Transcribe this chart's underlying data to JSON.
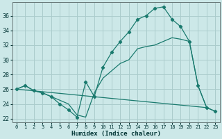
{
  "xlabel": "Humidex (Indice chaleur)",
  "bg_color": "#cce8e8",
  "grid_color": "#aacccc",
  "line_color": "#1a7a6e",
  "xlim": [
    -0.5,
    23.5
  ],
  "ylim": [
    21.5,
    37.8
  ],
  "xticks": [
    0,
    1,
    2,
    3,
    4,
    5,
    6,
    7,
    8,
    9,
    10,
    11,
    12,
    13,
    14,
    15,
    16,
    17,
    18,
    19,
    20,
    21,
    22,
    23
  ],
  "yticks": [
    22,
    24,
    26,
    28,
    30,
    32,
    34,
    36
  ],
  "curve1_x": [
    0,
    1,
    2,
    3,
    4,
    5,
    6,
    7,
    8,
    9,
    10,
    11,
    12,
    13,
    14,
    15,
    16,
    17,
    18,
    19,
    20,
    21,
    22,
    23
  ],
  "curve1_y": [
    26.0,
    26.5,
    25.8,
    25.5,
    25.0,
    24.0,
    23.2,
    22.2,
    27.0,
    25.0,
    29.0,
    31.0,
    32.5,
    33.8,
    35.5,
    36.0,
    37.0,
    37.2,
    35.5,
    34.5,
    32.5,
    26.5,
    23.5,
    23.0
  ],
  "curve2_x": [
    0,
    1,
    2,
    3,
    4,
    5,
    6,
    7,
    8,
    9,
    10,
    11,
    12,
    13,
    14,
    15,
    16,
    17,
    18,
    19,
    20,
    21,
    22,
    23
  ],
  "curve2_y": [
    26.0,
    26.5,
    25.8,
    25.5,
    25.0,
    24.5,
    24.0,
    22.5,
    22.2,
    25.5,
    27.5,
    28.5,
    29.5,
    30.0,
    31.5,
    31.8,
    32.0,
    32.5,
    33.0,
    32.8,
    32.5,
    26.5,
    23.5,
    23.0
  ],
  "curve3_x": [
    0,
    22
  ],
  "curve3_y": [
    26.0,
    23.5
  ]
}
